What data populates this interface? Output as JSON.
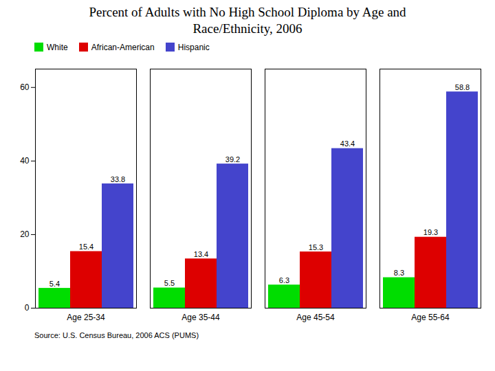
{
  "chart_data": {
    "type": "bar",
    "title": "Percent of Adults with No High School Diploma by Age and\nRace/Ethnicity, 2006",
    "categories": [
      "Age 25-34",
      "Age 35-44",
      "Age 45-54",
      "Age 55-64"
    ],
    "series": [
      {
        "name": "White",
        "color": "#00dd00",
        "values": [
          5.4,
          5.5,
          6.3,
          8.3
        ]
      },
      {
        "name": "African-American",
        "color": "#dd0000",
        "values": [
          15.4,
          13.4,
          15.3,
          19.3
        ]
      },
      {
        "name": "Hispanic",
        "color": "#4444cc",
        "values": [
          33.8,
          39.2,
          43.4,
          58.8
        ]
      }
    ],
    "ylim": [
      0,
      65
    ],
    "yticks": [
      0,
      20,
      40,
      60
    ],
    "grid": false,
    "legend": "upper left",
    "data_labels": true,
    "source": "Source:  U.S. Census Bureau, 2006 ACS (PUMS)"
  }
}
